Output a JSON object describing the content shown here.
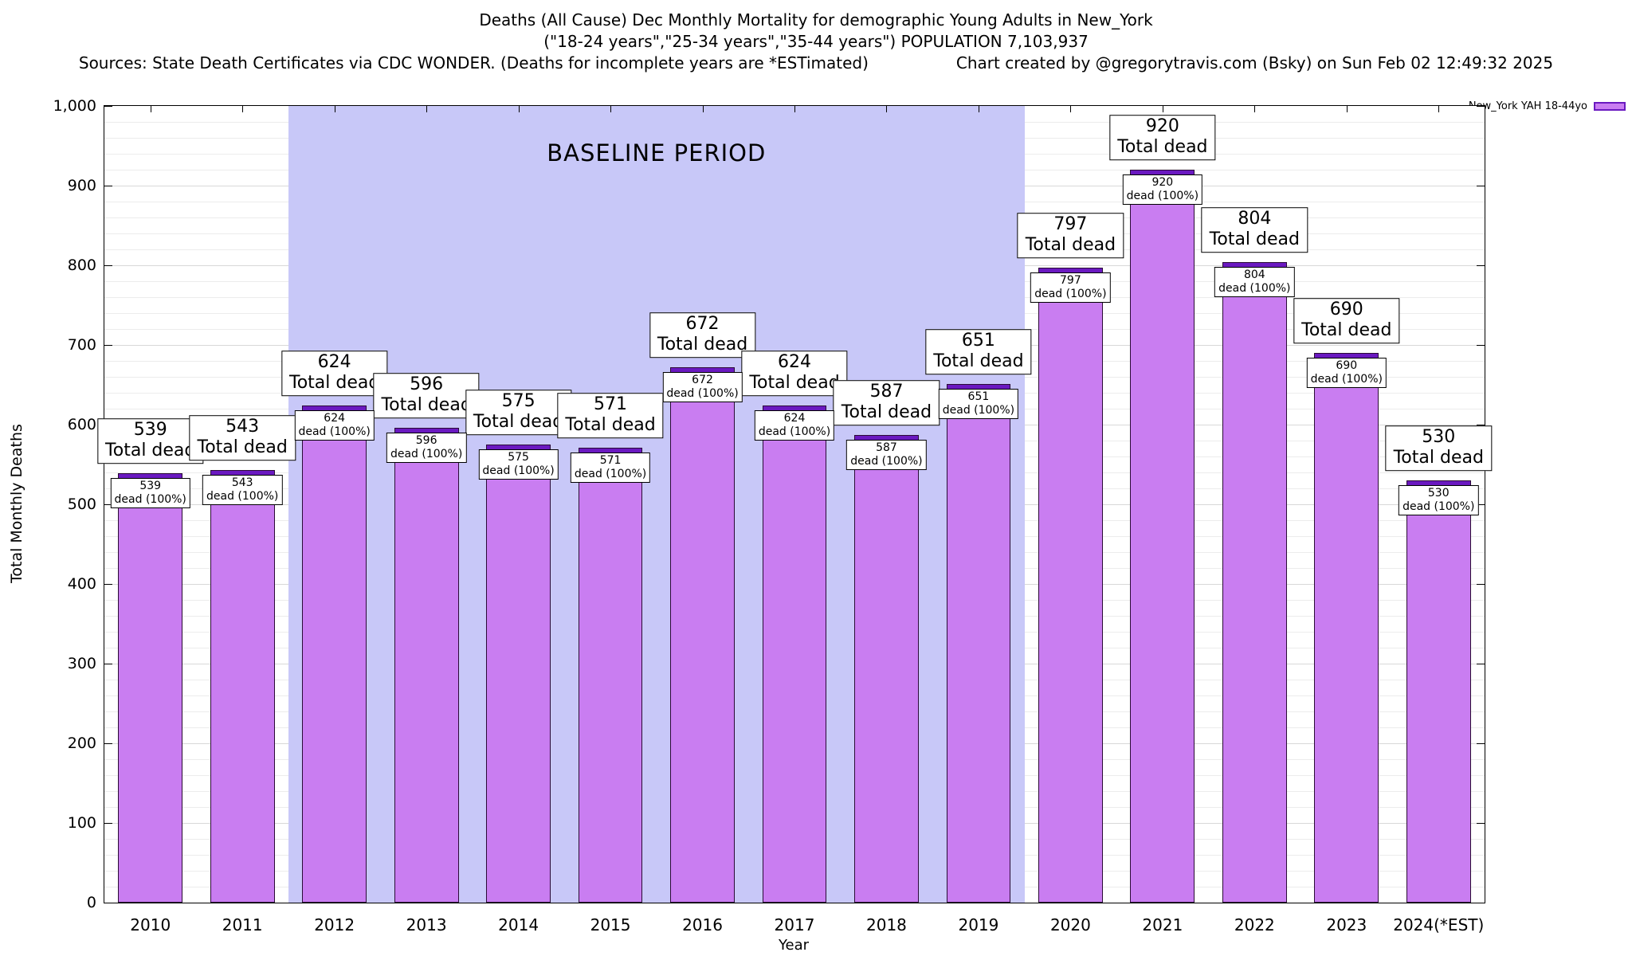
{
  "header": {
    "title_line1": "Deaths (All Cause) Dec Monthly Mortality for demographic Young Adults in New_York",
    "title_line2": "(\"18-24 years\",\"25-34 years\",\"35-44 years\") POPULATION 7,103,937",
    "sources": "Sources: State Death Certificates via CDC WONDER. (Deaths for incomplete years are *ESTimated)",
    "credit": "Chart created by @gregorytravis.com (Bsky) on Sun Feb 02 12:49:32 2025"
  },
  "legend": {
    "label": "New_York YAH 18-44yo",
    "swatch_fill": "#c97df1",
    "swatch_border": "#6a19c0"
  },
  "chart_data": {
    "type": "bar",
    "title": "Deaths (All Cause) Dec Monthly Mortality for demographic Young Adults in New_York",
    "subtitle": "(\"18-24 years\",\"25-34 years\",\"35-44 years\") POPULATION 7,103,937",
    "categories": [
      "2010",
      "2011",
      "2012",
      "2013",
      "2014",
      "2015",
      "2016",
      "2017",
      "2018",
      "2019",
      "2020",
      "2021",
      "2022",
      "2023",
      "2024(*EST)"
    ],
    "values": [
      539,
      543,
      624,
      596,
      575,
      571,
      672,
      624,
      587,
      651,
      797,
      920,
      804,
      690,
      530
    ],
    "xlabel": "Year",
    "ylabel": "Total Monthly Deaths",
    "ylim": [
      0,
      1000
    ],
    "y_major_step": 100,
    "y_minor_step": 20,
    "y_ticks": [
      "0",
      "100",
      "200",
      "300",
      "400",
      "500",
      "600",
      "700",
      "800",
      "900",
      "1,000"
    ],
    "grid": true,
    "legend_entries": [
      "New_York YAH 18-44yo"
    ],
    "legend_position": "top-right",
    "bar_color": "#c97df1",
    "bar_cap_color": "#6a19c0",
    "annotations": {
      "total_label_suffix": "Total dead",
      "bar_label_suffix": "dead (100%)",
      "baseline": {
        "label": "BASELINE PERIOD",
        "from_category": "2012",
        "to_category": "2019",
        "color": "#c8c8f8"
      }
    }
  }
}
